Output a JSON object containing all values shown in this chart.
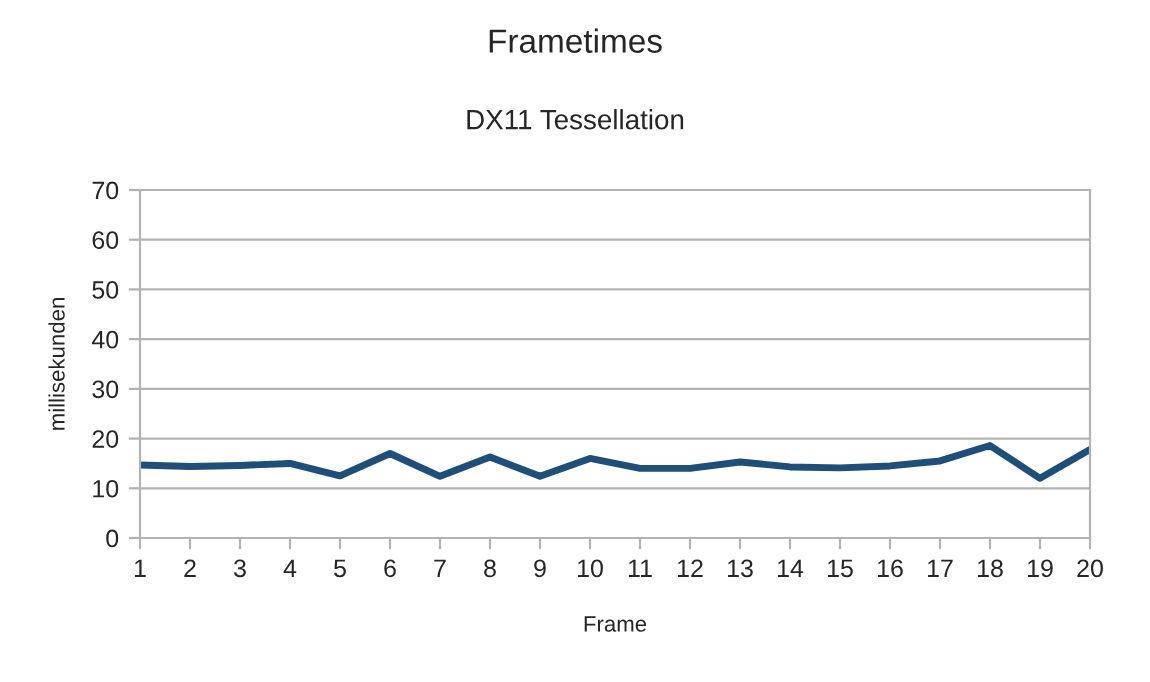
{
  "chart_data": {
    "type": "line",
    "title": "Frametimes",
    "subtitle": "DX11 Tessellation",
    "xlabel": "Frame",
    "ylabel": "millisekunden",
    "x": [
      1,
      2,
      3,
      4,
      5,
      6,
      7,
      8,
      9,
      10,
      11,
      12,
      13,
      14,
      15,
      16,
      17,
      18,
      19,
      20
    ],
    "series": [
      {
        "color": "#1f4e79",
        "values": [
          14.7,
          14.4,
          14.6,
          15.0,
          12.5,
          17.0,
          12.4,
          16.3,
          12.4,
          16.0,
          14.0,
          14.0,
          15.3,
          14.3,
          14.1,
          14.5,
          15.5,
          18.6,
          12.0,
          17.8
        ]
      }
    ],
    "xlim": [
      1,
      20
    ],
    "xticks": [
      1,
      2,
      3,
      4,
      5,
      6,
      7,
      8,
      9,
      10,
      11,
      12,
      13,
      14,
      15,
      16,
      17,
      18,
      19,
      20
    ],
    "ylim": [
      0,
      70
    ],
    "yticks": [
      0,
      10,
      20,
      30,
      40,
      50,
      60,
      70
    ],
    "grid": "y",
    "legend": false,
    "marker": "none",
    "line_style": "solid"
  }
}
